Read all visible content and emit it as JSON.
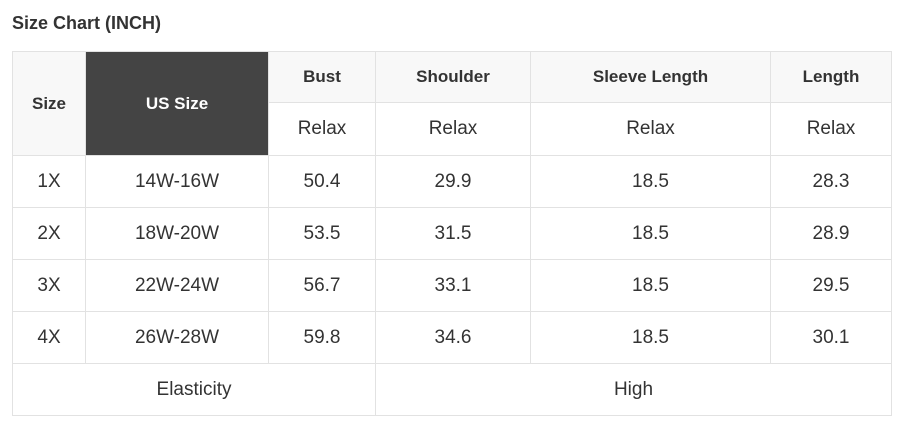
{
  "title": "Size Chart (INCH)",
  "headers": {
    "size": "Size",
    "us_size": "US Size",
    "bust": "Bust",
    "shoulder": "Shoulder",
    "sleeve": "Sleeve Length",
    "length": "Length"
  },
  "sub": [
    "Relax",
    "Relax",
    "Relax",
    "Relax"
  ],
  "rows": [
    {
      "size": "1X",
      "us": "14W-16W",
      "bust": "50.4",
      "shoulder": "29.9",
      "sleeve": "18.5",
      "length": "28.3"
    },
    {
      "size": "2X",
      "us": "18W-20W",
      "bust": "53.5",
      "shoulder": "31.5",
      "sleeve": "18.5",
      "length": "28.9"
    },
    {
      "size": "3X",
      "us": "22W-24W",
      "bust": "56.7",
      "shoulder": "33.1",
      "sleeve": "18.5",
      "length": "29.5"
    },
    {
      "size": "4X",
      "us": "26W-28W",
      "bust": "59.8",
      "shoulder": "34.6",
      "sleeve": "18.5",
      "length": "30.1"
    }
  ],
  "footer": {
    "label": "Elasticity",
    "value": "High"
  },
  "colors": {
    "header_bg": "#f8f8f8",
    "us_size_bg": "#444444",
    "border": "#e2e2e2",
    "text": "#333333"
  }
}
